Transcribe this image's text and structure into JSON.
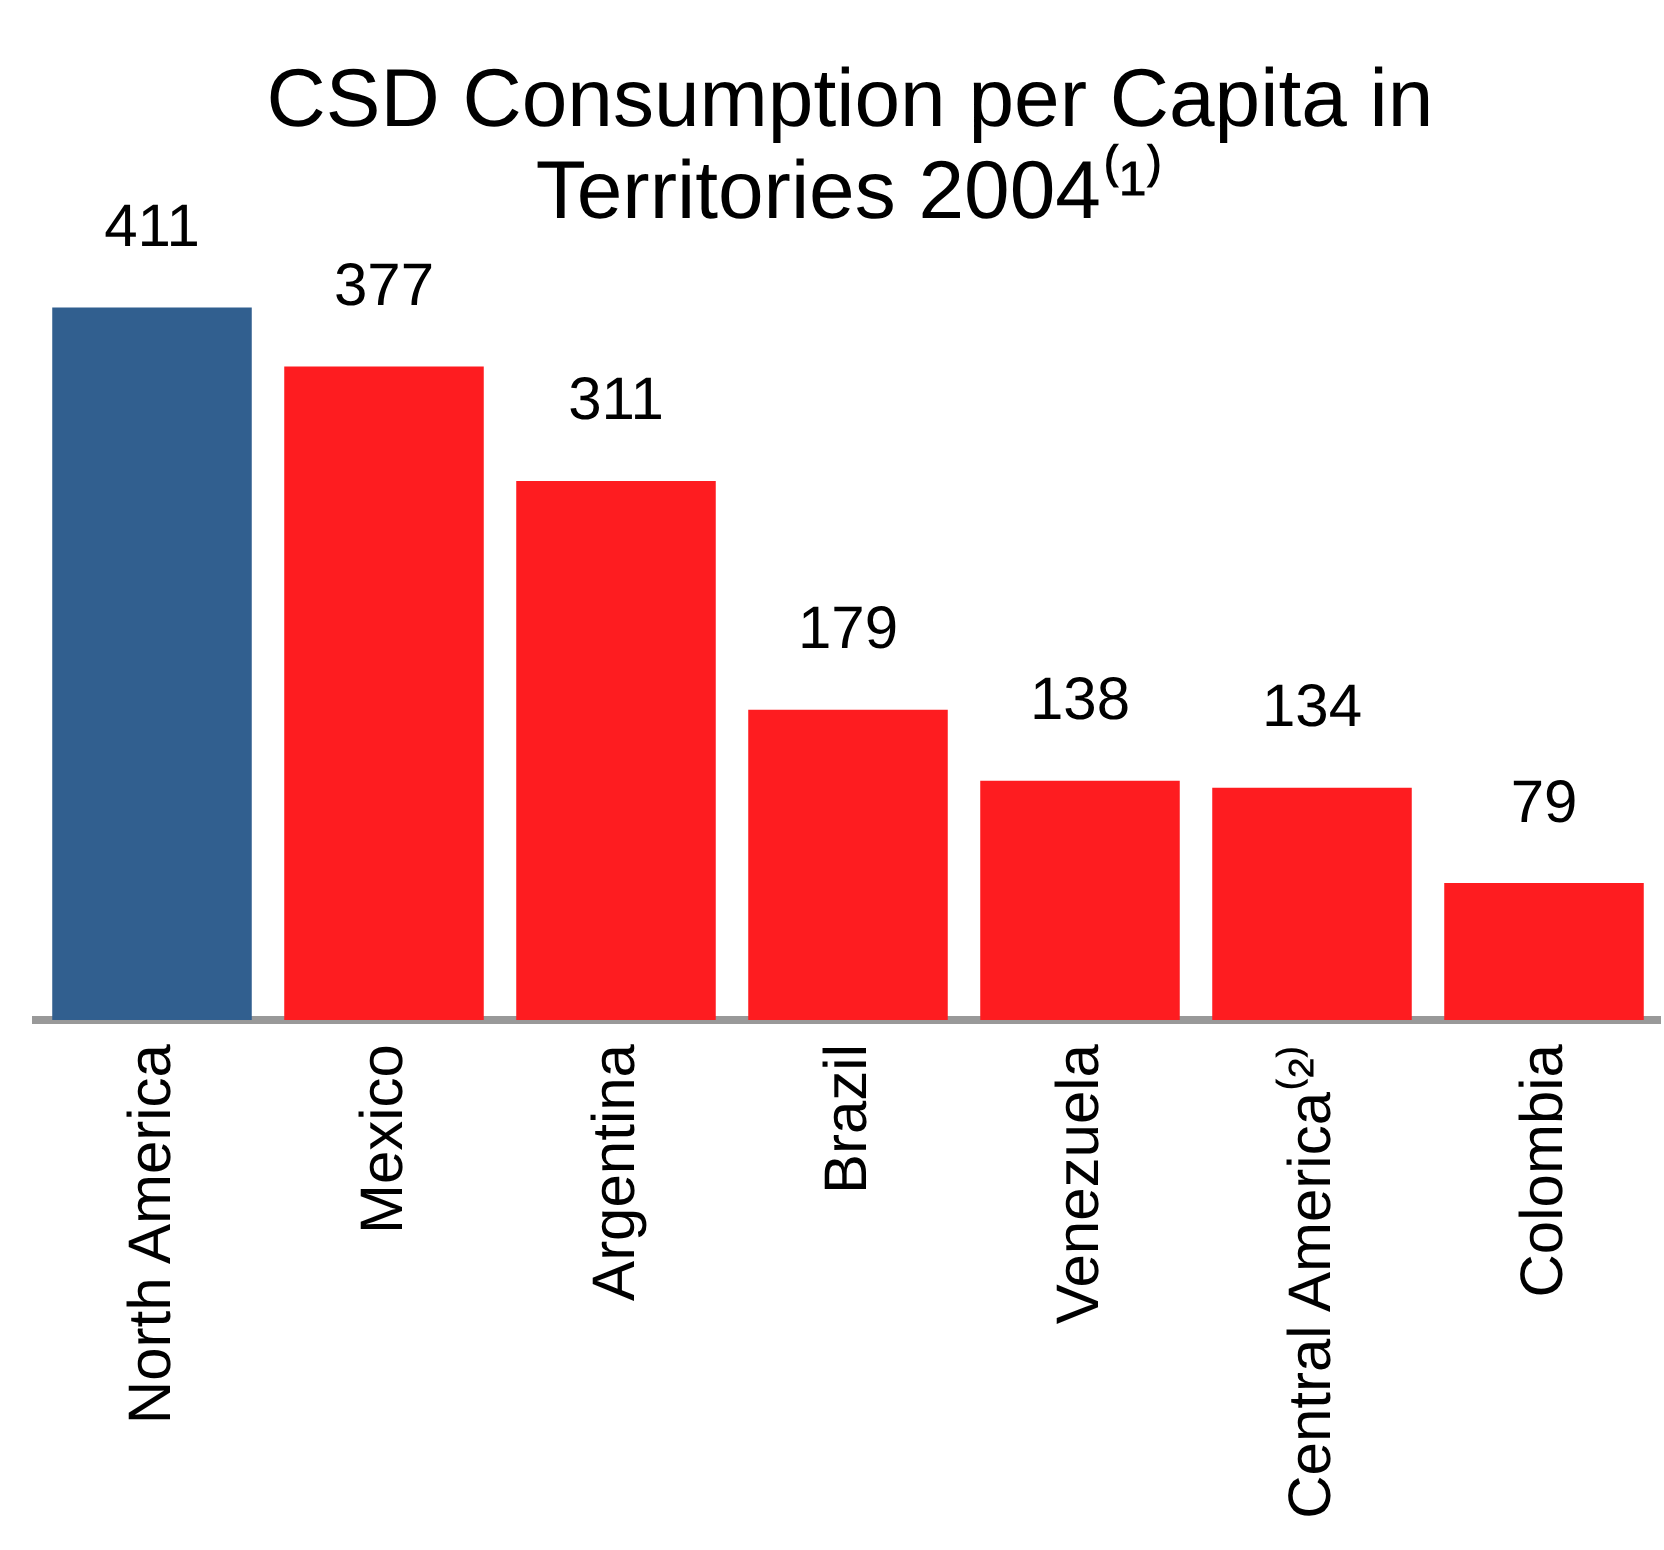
{
  "chart_data": {
    "type": "bar",
    "title": "CSD Consumption per Capita in Territories 2004⁽¹⁾",
    "categories": [
      "North America",
      "Mexico",
      "Argentina",
      "Brazil",
      "Venezuela",
      "Central America⁽²⁾",
      "Colombia"
    ],
    "values": [
      411,
      377,
      311,
      179,
      138,
      134,
      79
    ],
    "colors": [
      "#315f8f",
      "#fe1c20",
      "#fe1c20",
      "#fe1c20",
      "#fe1c20",
      "#fe1c20",
      "#fe1c20"
    ],
    "data_labels": true
  }
}
